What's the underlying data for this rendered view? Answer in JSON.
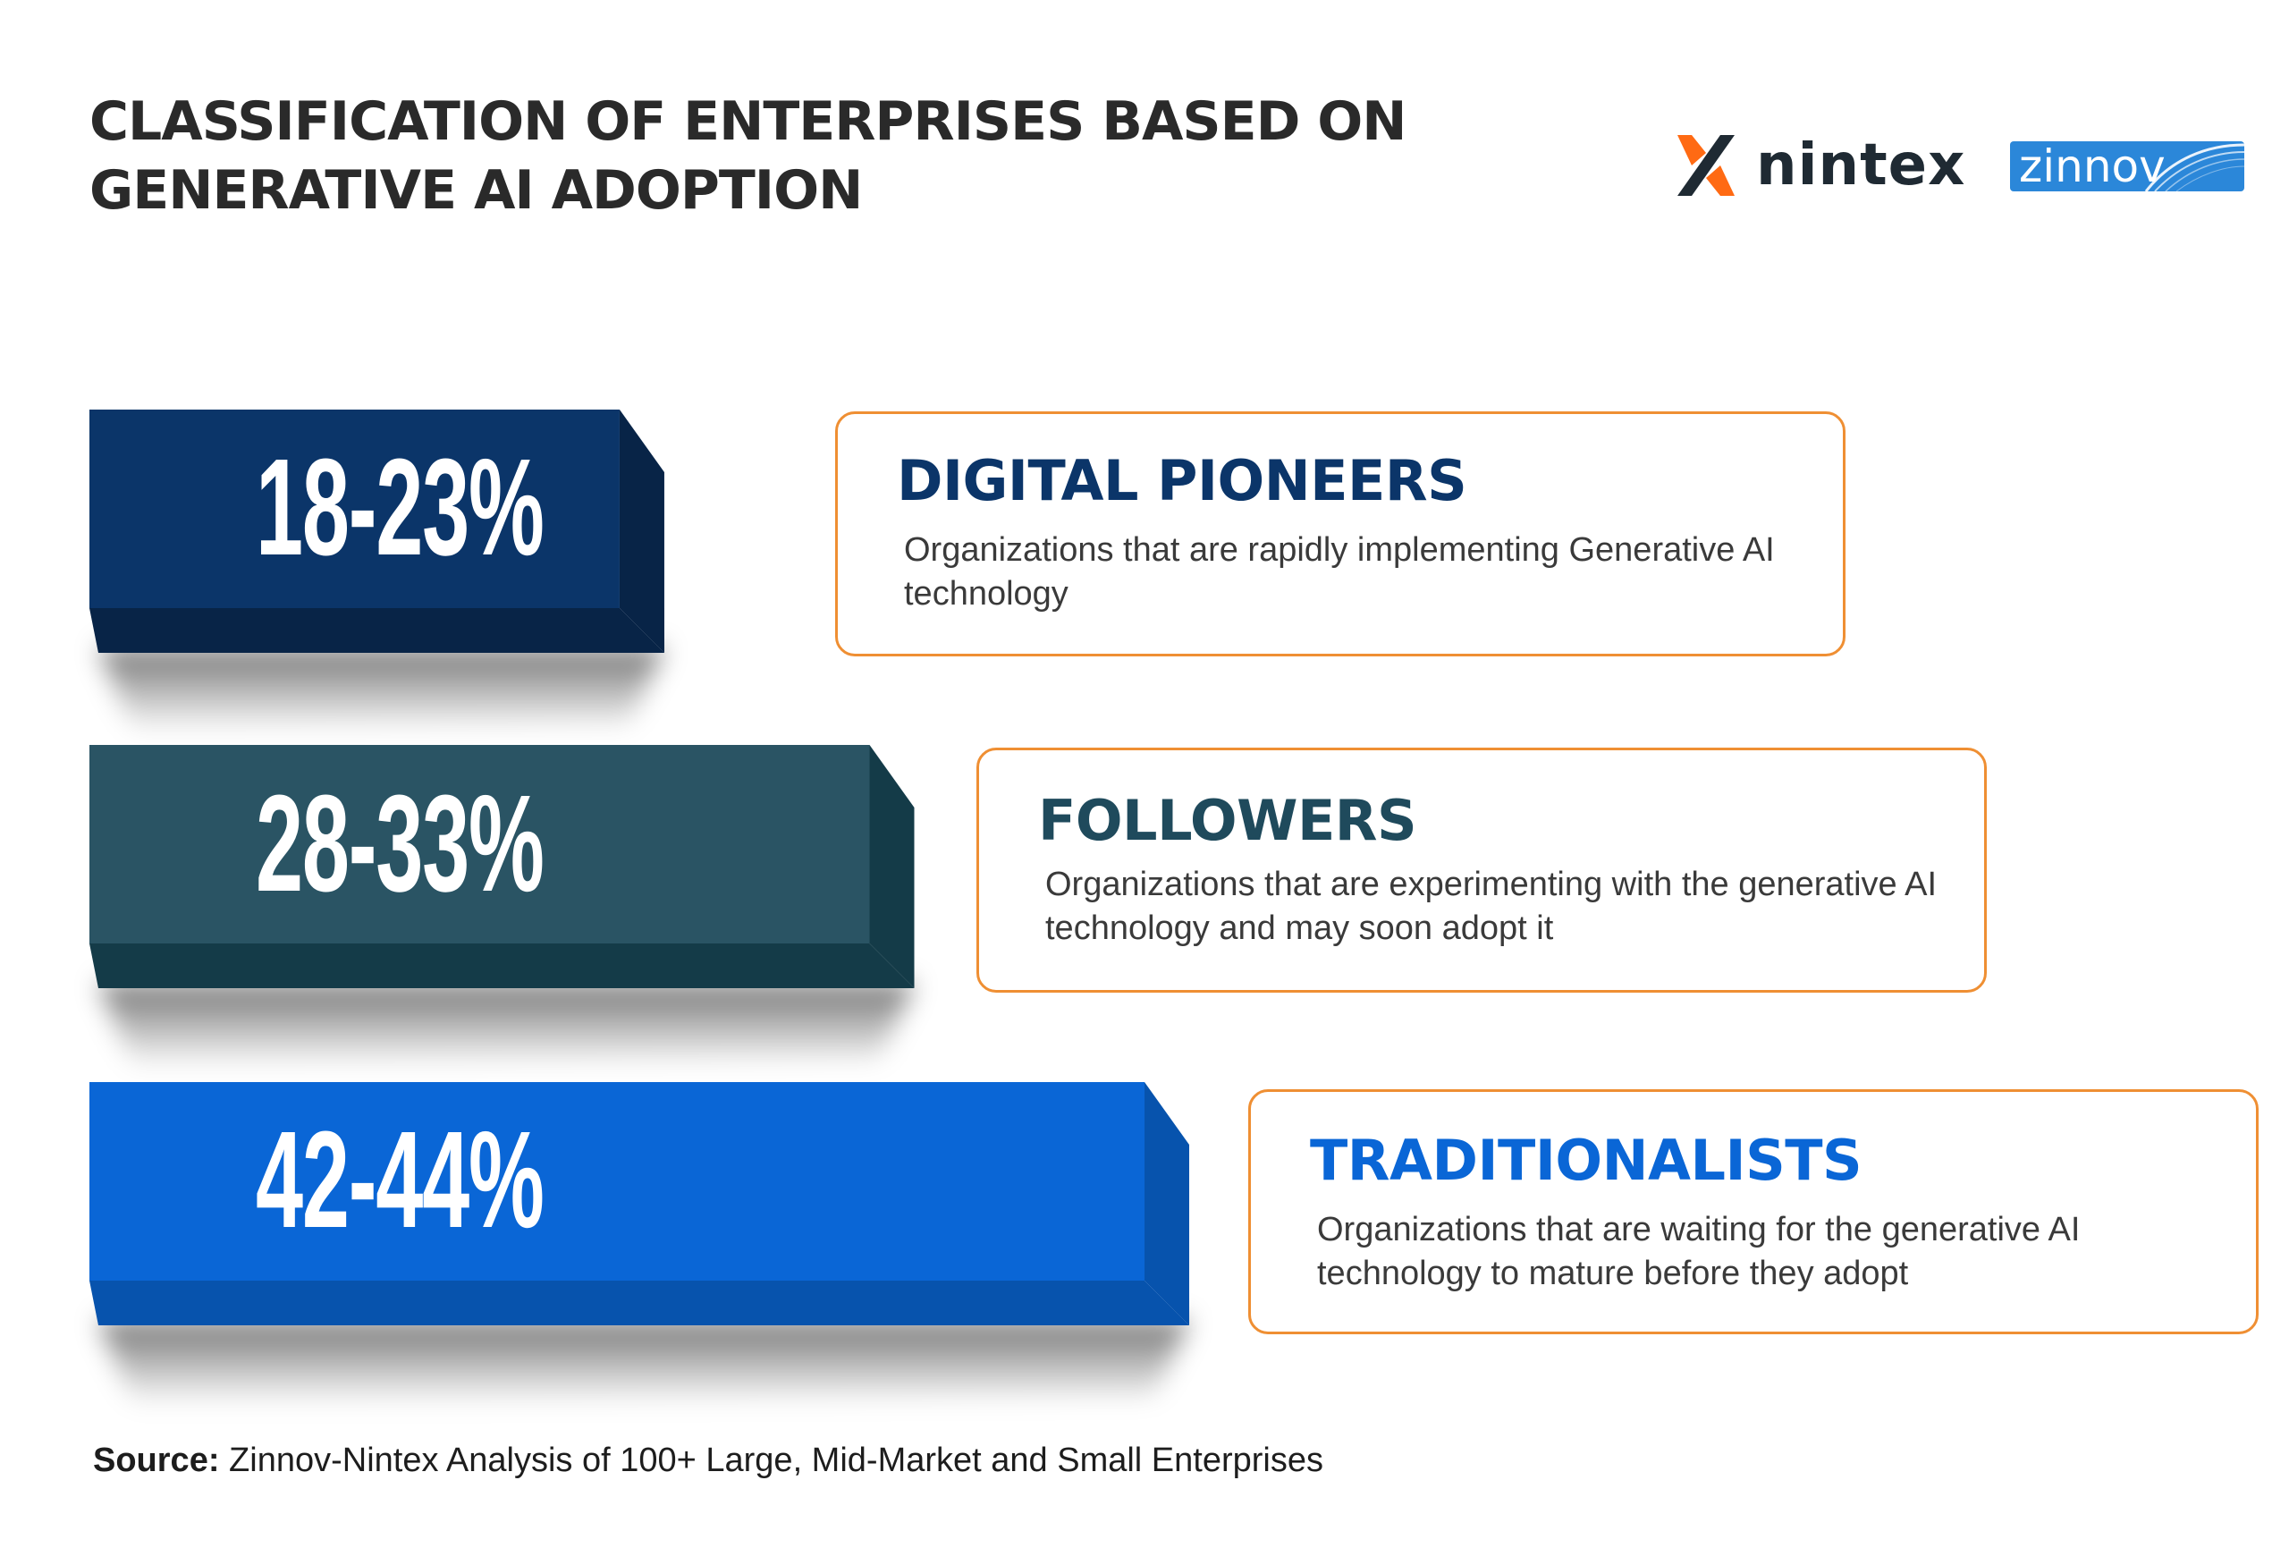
{
  "title_lines": [
    "CLASSIFICATION OF ENTERPRISES BASED ON",
    "GENERATIVE AI ADOPTION"
  ],
  "logos": {
    "nintex": {
      "text": "nintex",
      "mark_colors": [
        "#ff6a13",
        "#1f2a33"
      ]
    },
    "zinnov": {
      "text": "zinnov",
      "bg_color": "#2b87d9"
    }
  },
  "colors": {
    "card_border": "#ef8f33",
    "pioneers": "#0b3569",
    "followers": "#2a5464",
    "traditionalists": "#0a66d6"
  },
  "chart_data": {
    "type": "bar",
    "orientation": "horizontal",
    "categories": [
      "DIGITAL PIONEERS",
      "FOLLOWERS",
      "TRADITIONALISTS"
    ],
    "value_labels": [
      "18-23%",
      "28-33%",
      "42-44%"
    ],
    "values_range": [
      [
        18,
        23
      ],
      [
        28,
        33
      ],
      [
        42,
        44
      ]
    ],
    "values": [
      23,
      33,
      44
    ],
    "descriptions": [
      [
        "Organizations that are rapidly implementing Generative AI",
        "technology"
      ],
      [
        "Organizations that are experimenting with the generative AI",
        "technology and may soon adopt it"
      ],
      [
        "Organizations that are waiting for the generative AI",
        "technology to mature before they adopt"
      ]
    ],
    "bar_colors": [
      "#0b3569",
      "#2a5464",
      "#0a66d6"
    ],
    "bar_side_colors": [
      "#082447",
      "#143b48",
      "#0753ad"
    ],
    "title_colors": [
      "#0b3569",
      "#1f4a5c",
      "#0a66d6"
    ]
  },
  "source": {
    "label": "Source:",
    "text": " Zinnov-Nintex Analysis of 100+ Large, Mid-Market and Small Enterprises"
  }
}
